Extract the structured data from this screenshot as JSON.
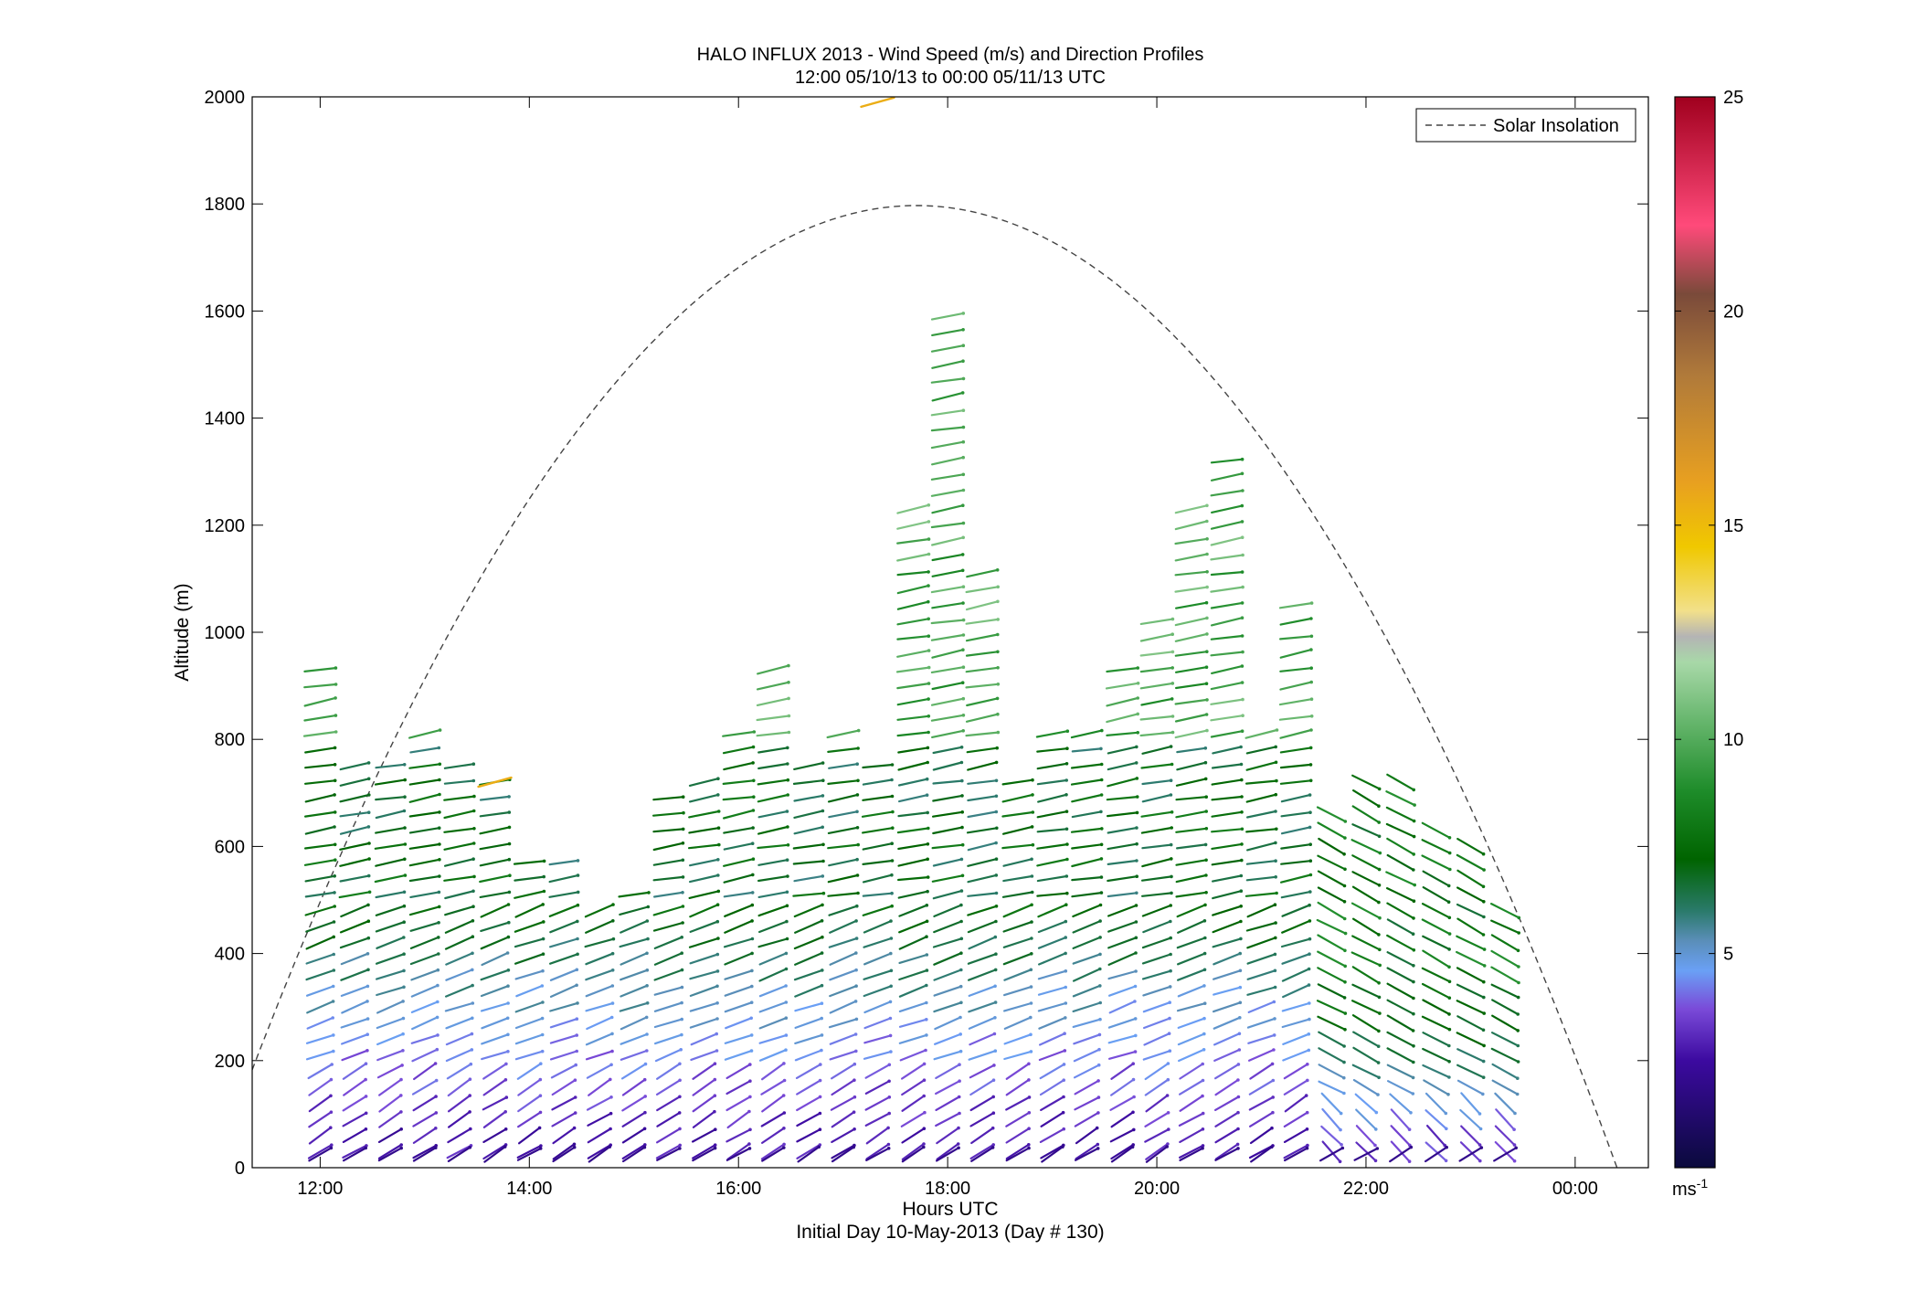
{
  "chart_data": {
    "type": "wind-barb-profile",
    "title": "HALO INFLUX 2013 - Wind Speed (m/s) and Direction Profiles",
    "subtitle": "12:00 05/10/13 to 00:00 05/11/13  UTC",
    "xlabel": "Hours UTC",
    "xlabel2": "Initial Day 10-May-2013 (Day # 130)",
    "ylabel": "Altitude (m)",
    "xlim_hours": [
      11.35,
      24.7
    ],
    "ylim": [
      0,
      2000
    ],
    "x_ticks": [
      {
        "hour": 12,
        "label": "12:00"
      },
      {
        "hour": 14,
        "label": "14:00"
      },
      {
        "hour": 16,
        "label": "16:00"
      },
      {
        "hour": 18,
        "label": "18:00"
      },
      {
        "hour": 20,
        "label": "20:00"
      },
      {
        "hour": 22,
        "label": "22:00"
      },
      {
        "hour": 24,
        "label": "00:00"
      }
    ],
    "y_ticks": [
      0,
      200,
      400,
      600,
      800,
      1000,
      1200,
      1400,
      1600,
      1800,
      2000
    ],
    "colorbar": {
      "range": [
        0,
        25
      ],
      "ticks": [
        "5",
        "10",
        "15",
        "20",
        "25"
      ],
      "unit_base": "ms",
      "unit_exp": "-1",
      "stops": [
        {
          "v": 0.0,
          "c": "#0a0a3c"
        },
        {
          "v": 2.5,
          "c": "#3c0aa0"
        },
        {
          "v": 3.7,
          "c": "#7a4ad8"
        },
        {
          "v": 4.6,
          "c": "#6aa0f5"
        },
        {
          "v": 5.3,
          "c": "#5a8eb8"
        },
        {
          "v": 6.0,
          "c": "#2a7a6a"
        },
        {
          "v": 7.2,
          "c": "#006400"
        },
        {
          "v": 8.8,
          "c": "#1e8c2a"
        },
        {
          "v": 10.5,
          "c": "#6ab870"
        },
        {
          "v": 11.8,
          "c": "#a8d8a8"
        },
        {
          "v": 12.4,
          "c": "#b4b4b4"
        },
        {
          "v": 13.0,
          "c": "#f2e08a"
        },
        {
          "v": 14.5,
          "c": "#f0c800"
        },
        {
          "v": 16.0,
          "c": "#e8a020"
        },
        {
          "v": 18.5,
          "c": "#b07a3a"
        },
        {
          "v": 20.4,
          "c": "#7a4a3a"
        },
        {
          "v": 22.0,
          "c": "#ff4a7a"
        },
        {
          "v": 25.0,
          "c": "#a0001e"
        }
      ]
    },
    "legend": {
      "label": "Solar Insolation",
      "position": "top-right"
    },
    "solar_insolation_curve": {
      "peak_hour": 17.7,
      "peak_altitude": 1797,
      "zero_hours": [
        11.05,
        24.45
      ]
    },
    "profiles": [
      {
        "hour": 12.0,
        "top": 940,
        "regime": "A"
      },
      {
        "hour": 12.33,
        "top": 760,
        "regime": "A"
      },
      {
        "hour": 12.67,
        "top": 760,
        "regime": "A"
      },
      {
        "hour": 13.0,
        "top": 830,
        "regime": "A"
      },
      {
        "hour": 13.33,
        "top": 760,
        "regime": "A"
      },
      {
        "hour": 13.67,
        "top": 720,
        "regime": "A"
      },
      {
        "hour": 14.0,
        "top": 590,
        "regime": "A"
      },
      {
        "hour": 14.33,
        "top": 590,
        "regime": "A"
      },
      {
        "hour": 14.67,
        "top": 490,
        "regime": "A"
      },
      {
        "hour": 15.0,
        "top": 530,
        "regime": "A"
      },
      {
        "hour": 15.33,
        "top": 710,
        "regime": "A"
      },
      {
        "hour": 15.67,
        "top": 730,
        "regime": "A"
      },
      {
        "hour": 16.0,
        "top": 830,
        "regime": "A"
      },
      {
        "hour": 16.33,
        "top": 930,
        "regime": "A"
      },
      {
        "hour": 16.67,
        "top": 760,
        "regime": "A"
      },
      {
        "hour": 17.0,
        "top": 830,
        "regime": "A"
      },
      {
        "hour": 17.33,
        "top": 750,
        "regime": "A"
      },
      {
        "hour": 17.67,
        "top": 1230,
        "regime": "A"
      },
      {
        "hour": 18.0,
        "top": 1610,
        "regime": "A"
      },
      {
        "hour": 18.33,
        "top": 1130,
        "regime": "A"
      },
      {
        "hour": 18.67,
        "top": 720,
        "regime": "A"
      },
      {
        "hour": 19.0,
        "top": 830,
        "regime": "A"
      },
      {
        "hour": 19.33,
        "top": 830,
        "regime": "A"
      },
      {
        "hour": 19.67,
        "top": 930,
        "regime": "A"
      },
      {
        "hour": 20.0,
        "top": 1040,
        "regime": "A"
      },
      {
        "hour": 20.33,
        "top": 1230,
        "regime": "A"
      },
      {
        "hour": 20.67,
        "top": 1320,
        "regime": "A"
      },
      {
        "hour": 21.0,
        "top": 830,
        "regime": "A"
      },
      {
        "hour": 21.33,
        "top": 1050,
        "regime": "A"
      },
      {
        "hour": 21.67,
        "top": 660,
        "regime": "B"
      },
      {
        "hour": 22.0,
        "top": 730,
        "regime": "B"
      },
      {
        "hour": 22.33,
        "top": 730,
        "regime": "B"
      },
      {
        "hour": 22.67,
        "top": 640,
        "regime": "B"
      },
      {
        "hour": 23.0,
        "top": 620,
        "regime": "B"
      },
      {
        "hour": 23.33,
        "top": 500,
        "regime": "B"
      }
    ],
    "highlights": [
      {
        "hour": 13.67,
        "altitude": 720,
        "speed": 15.5
      },
      {
        "hour": 17.33,
        "altitude": 1990,
        "speed": 15.5
      }
    ]
  }
}
